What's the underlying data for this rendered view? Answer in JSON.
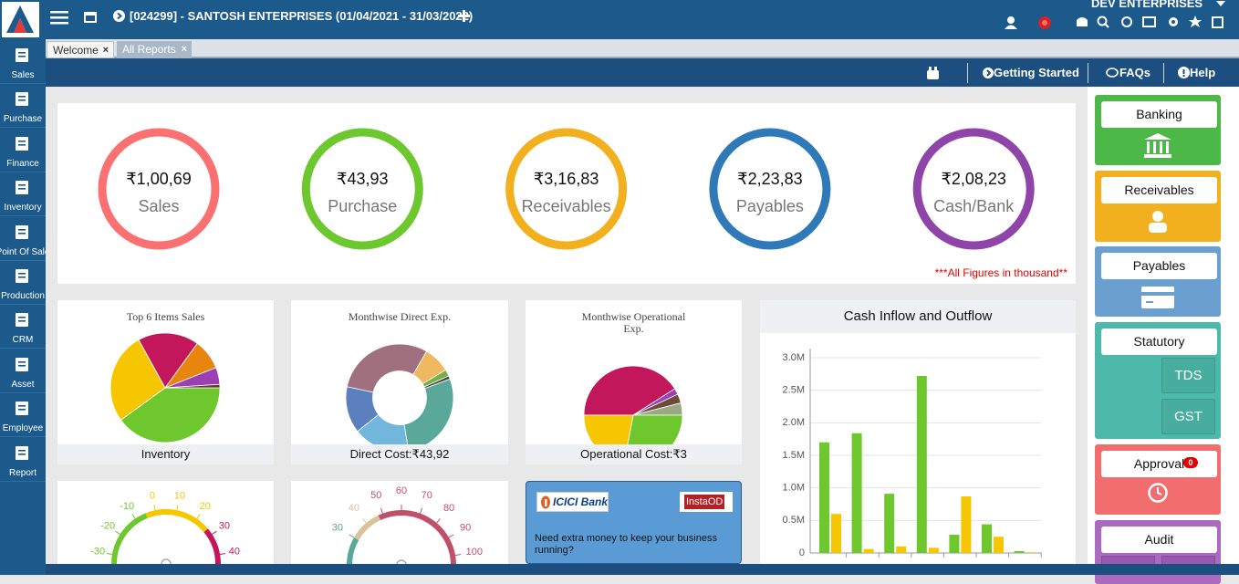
{
  "header": {
    "title": "[024299] - SANTOSH ENTERPRISES (01/04/2021 - 31/03/2022)",
    "company": "DEV ENTERPRISES"
  },
  "sidebar": [
    "Sales",
    "Purchase",
    "Finance",
    "Inventory",
    "Point Of Sale",
    "Production",
    "CRM",
    "Asset",
    "Employee",
    "Report"
  ],
  "tabs": [
    "Welcome",
    "All Reports"
  ],
  "toolbar": [
    "Getting Started",
    "FAQs",
    "Help"
  ],
  "summary": {
    "items": [
      {
        "value": "₹1,00,69",
        "label": "Sales",
        "color": "#fb7070"
      },
      {
        "value": "₹43,93",
        "label": "Purchase",
        "color": "#6cc82e"
      },
      {
        "value": "₹3,16,83",
        "label": "Receivables",
        "color": "#f2b01e"
      },
      {
        "value": "₹2,23,83",
        "label": "Payables",
        "color": "#2f79b9"
      },
      {
        "value": "₹2,08,23",
        "label": "Cash/Bank",
        "color": "#8e44a8"
      }
    ],
    "note": "***All Figures in thousand**"
  },
  "chart_data": [
    {
      "type": "pie",
      "title": "Top 6 Items Sales",
      "footer": "Inventory",
      "values": [
        40,
        27,
        18,
        9,
        5,
        1
      ],
      "colors": [
        "#6ec72d",
        "#f6c600",
        "#c2185b",
        "#e8850f",
        "#9b3fb5",
        "#5a3d2b"
      ]
    },
    {
      "type": "donut",
      "title": "Monthwise Direct Exp.",
      "footer": "Direct Cost:₹43,92",
      "values": [
        8,
        2,
        1,
        28,
        17,
        14,
        30
      ],
      "colors": [
        "#f0b860",
        "#74b04a",
        "#4a4a4a",
        "#5aa89a",
        "#73b6dc",
        "#5b7fbf",
        "#a0707f"
      ]
    },
    {
      "type": "pie",
      "title": "Monthwise Operational Exp.",
      "footer": "Operational Cost:₹3",
      "values": [
        41,
        2,
        3,
        4,
        28,
        22
      ],
      "colors": [
        "#c2185b",
        "#9b3fb5",
        "#6d4a3a",
        "#9aaa80",
        "#6ec72d",
        "#f6c600"
      ]
    },
    {
      "type": "bar",
      "title": "Cash Inflow and Outflow",
      "categories": [
        null,
        null,
        null,
        null,
        null,
        null,
        null
      ],
      "series": [
        {
          "color": "#6ec72d",
          "values": [
            1700000,
            1840000,
            910000,
            2720000,
            280000,
            440000,
            30000
          ]
        },
        {
          "color": "#f6c600",
          "values": [
            600000,
            60000,
            100000,
            80000,
            870000,
            250000,
            10000
          ]
        }
      ],
      "ylim": [
        0,
        3000000
      ],
      "yticks": [
        0,
        {
          "value": 500000,
          "label": "0.5M"
        },
        {
          "value": 1000000,
          "label": "1.0M"
        },
        {
          "value": 1500000,
          "label": "1.5M"
        },
        {
          "value": 2000000,
          "label": "2.0M"
        },
        {
          "value": 2500000,
          "label": "2.5M"
        },
        {
          "value": 3000000,
          "label": "3.0M"
        }
      ],
      "grid": true
    },
    {
      "type": "gauge",
      "ticks": [
        -30,
        -20,
        -10,
        0,
        10,
        20,
        30,
        40
      ]
    },
    {
      "type": "gauge",
      "ticks": [
        30,
        40,
        50,
        60,
        70,
        80,
        90,
        100
      ]
    }
  ],
  "promo": {
    "bank": "ICICI Bank",
    "product": "InstaOD",
    "text": "Need extra money to keep your business running?"
  },
  "quick_links": {
    "banking": "Banking",
    "receivables": "Receivables",
    "payables": "Payables",
    "statutory": "Statutory",
    "tds": "TDS",
    "gst": "GST",
    "approval": "Approval",
    "approval_count": "0",
    "audit": "Audit"
  }
}
